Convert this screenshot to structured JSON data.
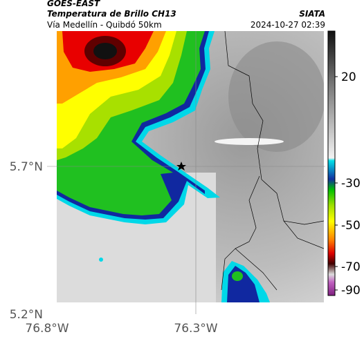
{
  "header": {
    "source": "GOES-EAST",
    "title": "Temperatura de Brillo CH13",
    "subtitle": "Vía Medellín - Quibdó 50km",
    "agency": "SIATA",
    "timestamp": "2024-10-27 02:39"
  },
  "axes": {
    "lat_labels": [
      "5.7°N",
      "5.2°N"
    ],
    "lon_labels": [
      "76.8°W",
      "76.3°W"
    ]
  },
  "colorbar": {
    "ticks": [
      "20",
      "-30",
      "-50",
      "-70",
      "-90"
    ]
  }
}
